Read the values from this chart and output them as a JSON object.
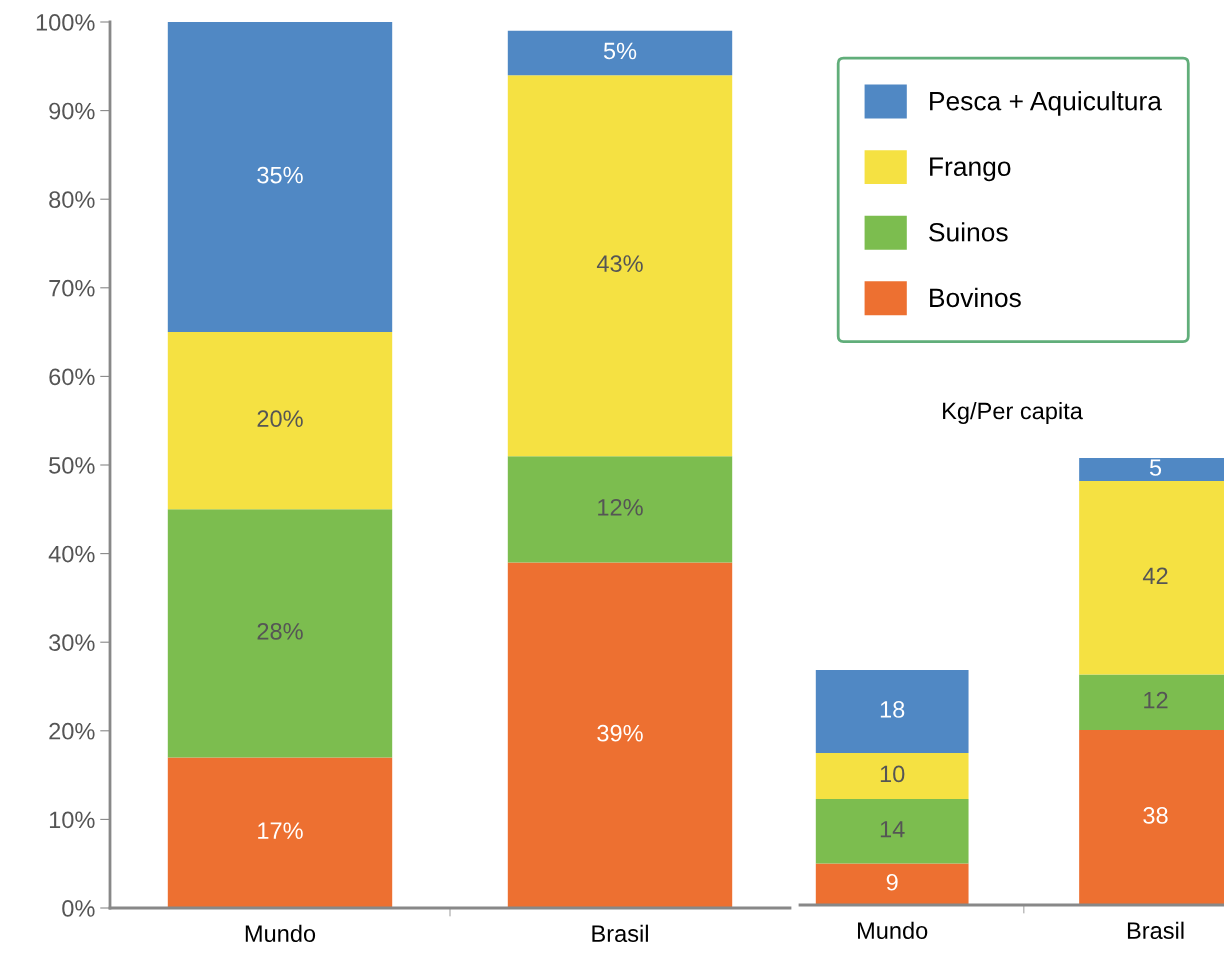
{
  "chart_data": [
    {
      "type": "bar",
      "stacked": true,
      "categories": [
        "Mundo",
        "Brasil"
      ],
      "ylim": [
        0,
        100
      ],
      "yticks": [
        {
          "value": 0,
          "label": "0%"
        },
        {
          "value": 10,
          "label": "10%"
        },
        {
          "value": 20,
          "label": "20%"
        },
        {
          "value": 30,
          "label": "30%"
        },
        {
          "value": 40,
          "label": "40%"
        },
        {
          "value": 50,
          "label": "50%"
        },
        {
          "value": 60,
          "label": "60%"
        },
        {
          "value": 70,
          "label": "70%"
        },
        {
          "value": 80,
          "label": "80%"
        },
        {
          "value": 90,
          "label": "90%"
        },
        {
          "value": 100,
          "label": "100%"
        }
      ],
      "grid": false,
      "legend": "right",
      "series": [
        {
          "name": "Bovinos",
          "color": "#ed7031",
          "values": [
            17,
            39
          ],
          "value_labels": [
            "17%",
            "39%"
          ]
        },
        {
          "name": "Suinos",
          "color": "#7cbd4f",
          "values": [
            28,
            12
          ],
          "value_labels": [
            "28%",
            "12%"
          ]
        },
        {
          "name": "Frango",
          "color": "#f5e142",
          "values": [
            20,
            43
          ],
          "value_labels": [
            "20%",
            "43%"
          ]
        },
        {
          "name": "Pesca + Aquicultura",
          "color": "#5088c4",
          "values": [
            35,
            5
          ],
          "value_labels": [
            "35%",
            "5%"
          ]
        }
      ]
    },
    {
      "type": "bar",
      "stacked": true,
      "data_labels": true,
      "title": "Kg/Per capita",
      "categories": [
        "Mundo",
        "Brasil"
      ],
      "tick_labels": "x",
      "grid": false,
      "series": [
        {
          "color": "#ed7031",
          "values": [
            9,
            38
          ]
        },
        {
          "color": "#7cbd4f",
          "values": [
            14,
            12
          ]
        },
        {
          "color": "#f5e142",
          "values": [
            10,
            42
          ]
        },
        {
          "color": "#5088c4",
          "values": [
            18,
            5
          ]
        }
      ]
    }
  ]
}
